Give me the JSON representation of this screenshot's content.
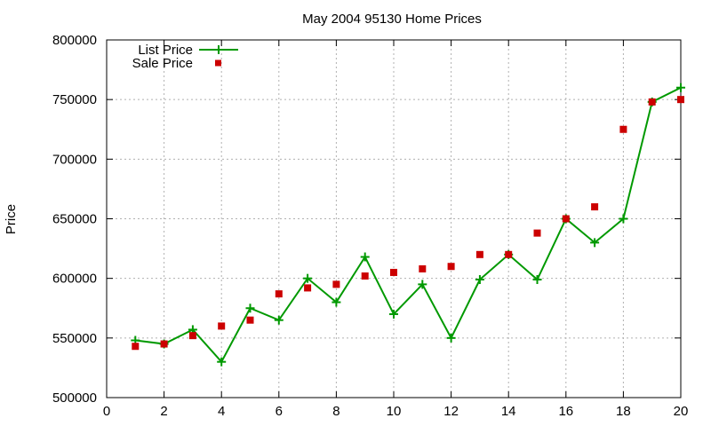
{
  "chart_data": {
    "type": "line",
    "title": "May 2004 95130 Home Prices",
    "xlabel": "",
    "ylabel": "Price",
    "xlim": [
      0,
      20
    ],
    "ylim": [
      500000,
      800000
    ],
    "grid": true,
    "legend_position": "top-left",
    "x_ticks": [
      "0",
      "2",
      "4",
      "6",
      "8",
      "10",
      "12",
      "14",
      "16",
      "18",
      "20"
    ],
    "y_ticks": [
      "500000",
      "550000",
      "600000",
      "650000",
      "700000",
      "750000",
      "800000"
    ],
    "x": [
      1,
      2,
      3,
      4,
      5,
      6,
      7,
      8,
      9,
      10,
      11,
      12,
      13,
      14,
      15,
      16,
      17,
      18,
      19,
      20
    ],
    "series": [
      {
        "name": "List Price",
        "style": "line-with-plus-markers",
        "color": "#009900",
        "values": [
          548000,
          545000,
          557000,
          530000,
          575000,
          565000,
          600000,
          580000,
          618000,
          570000,
          595000,
          550000,
          599000,
          620000,
          599000,
          650000,
          630000,
          650000,
          748000,
          760000
        ]
      },
      {
        "name": "Sale Price",
        "style": "square-points",
        "color": "#cc0000",
        "values": [
          543000,
          545000,
          552000,
          560000,
          565000,
          587000,
          592000,
          595000,
          602000,
          605000,
          608000,
          610000,
          620000,
          620000,
          638000,
          650000,
          660000,
          725000,
          748000,
          750000
        ]
      }
    ]
  }
}
